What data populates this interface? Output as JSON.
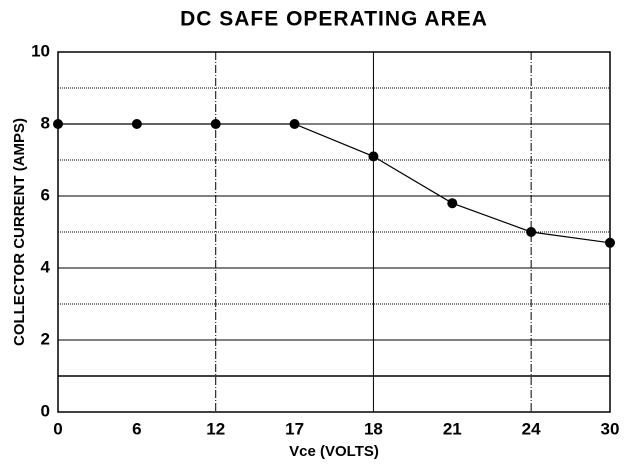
{
  "chart_data": {
    "type": "line",
    "title": "DC SAFE OPERATING AREA",
    "x_label": "Vce (VOLTS)",
    "y_label": "COLLECTOR CURRENT (AMPS)",
    "categories": [
      "0",
      "6",
      "12",
      "17",
      "18",
      "21",
      "24",
      "30"
    ],
    "values": [
      8,
      8,
      8,
      8,
      7.1,
      5.8,
      5,
      4.7
    ],
    "color": "#000000",
    "ylim": [
      0,
      10
    ],
    "yticks": [
      0,
      2,
      4,
      6,
      8,
      10
    ],
    "minor_yticks": [
      1,
      3,
      5,
      7,
      9
    ],
    "grid": true
  }
}
